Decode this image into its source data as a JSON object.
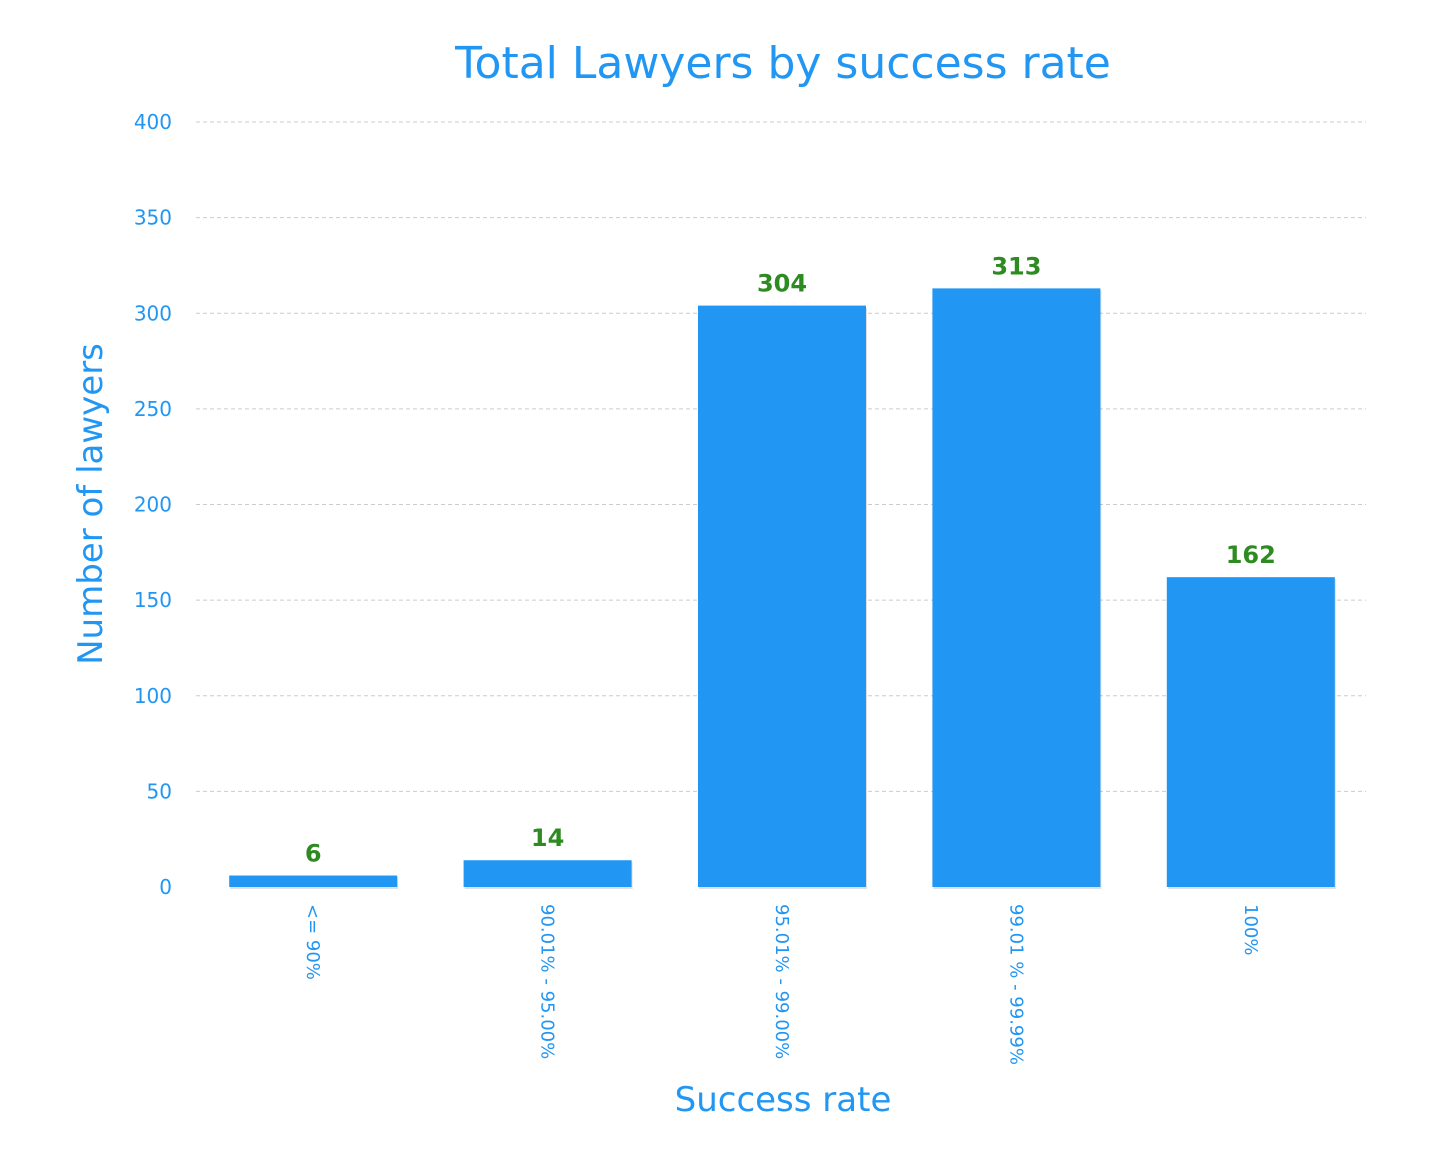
{
  "colors": {
    "text": "#2196f3",
    "bar": "#2196f3",
    "data_label": "#2e8b22",
    "grid": "#cccccc"
  },
  "chart_data": {
    "type": "bar",
    "title": "Total Lawyers by success rate",
    "xlabel": "Success rate",
    "ylabel": "Number of lawyers",
    "categories": [
      "<= 90%",
      "90.01% - 95.00%",
      "95.01% - 99.00%",
      "99.01 % - 99.99%",
      "100%"
    ],
    "values": [
      6,
      14,
      304,
      313,
      162
    ],
    "ylim": [
      0,
      400
    ],
    "y_ticks": [
      0,
      50,
      100,
      150,
      200,
      250,
      300,
      350,
      400
    ],
    "grid": true,
    "grid_style": "dashed",
    "legend": "none",
    "data_labels": true,
    "x_tick_rotation": 90
  }
}
